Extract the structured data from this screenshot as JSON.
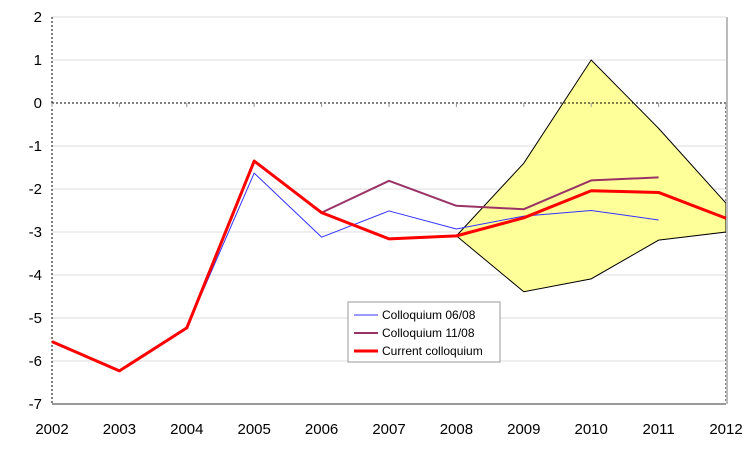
{
  "chart_data": {
    "type": "line",
    "title": "",
    "xlabel": "",
    "ylabel": "",
    "x": [
      "2002",
      "2003",
      "2004",
      "2005",
      "2006",
      "2007",
      "2008",
      "2009",
      "2010",
      "2011",
      "2012"
    ],
    "ylim": [
      -7,
      2
    ],
    "yticks": [
      "2",
      "1",
      "0",
      "-1",
      "-2",
      "-3",
      "-4",
      "-5",
      "-6",
      "-7"
    ],
    "grid": true,
    "legend_placement": "bottom-center",
    "series": [
      {
        "name": "Colloquium 06/08",
        "color": "#3333ff",
        "values": [
          -5.55,
          -6.23,
          -5.23,
          -1.63,
          -3.12,
          -2.51,
          -2.93,
          -2.63,
          -2.5,
          -2.72,
          null
        ]
      },
      {
        "name": "Colloquium 11/08",
        "color": "#993366",
        "values": [
          -5.55,
          -6.23,
          -5.23,
          -1.35,
          -2.55,
          -1.81,
          -2.39,
          -2.47,
          -1.8,
          -1.73,
          null
        ]
      },
      {
        "name": "Current colloquium",
        "color": "#ff0000",
        "values": [
          -5.55,
          -6.23,
          -5.23,
          -1.35,
          -2.55,
          -3.16,
          -3.09,
          -2.67,
          -2.04,
          -2.08,
          -2.68
        ]
      }
    ],
    "band": {
      "color": "#ffff99",
      "x": [
        "2008",
        "2009",
        "2010",
        "2011",
        "2012"
      ],
      "upper": [
        -3.09,
        -1.4,
        1.0,
        -0.59,
        -2.33
      ],
      "lower": [
        -3.09,
        -4.39,
        -4.09,
        -3.19,
        -3.0
      ]
    }
  }
}
